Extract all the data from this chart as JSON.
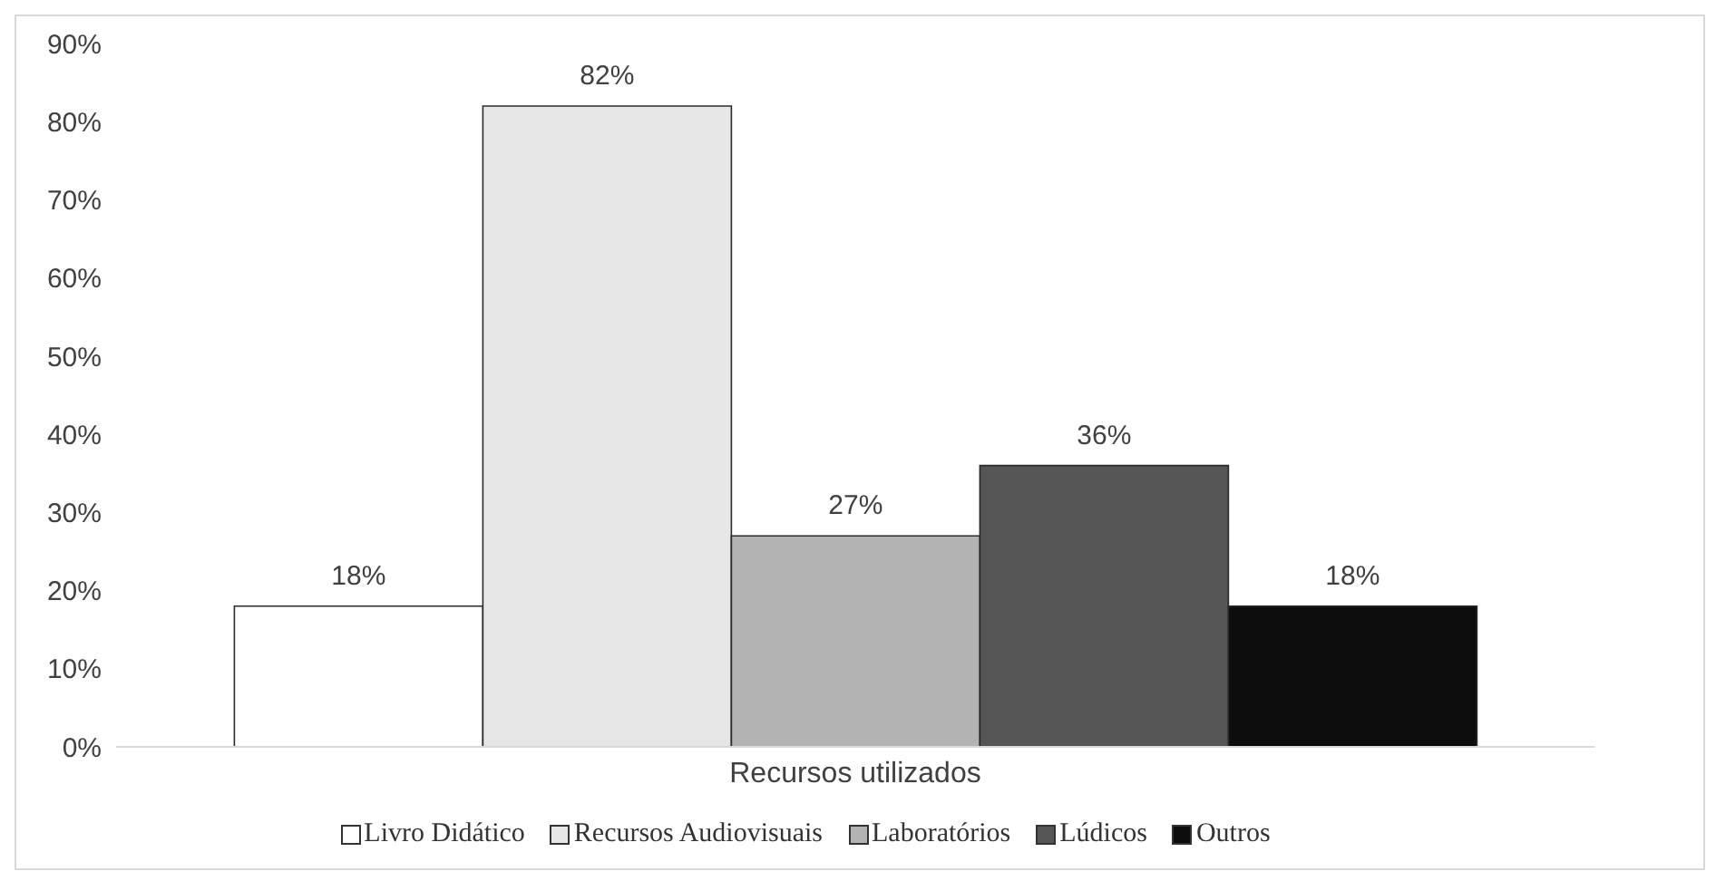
{
  "chart_data": {
    "type": "bar",
    "categories": [
      "Recursos utilizados"
    ],
    "series": [
      {
        "name": "Livro Didático",
        "color": "#ffffff",
        "values": [
          18
        ],
        "value_labels": [
          "18%"
        ]
      },
      {
        "name": "Recursos Audiovisuais",
        "color": "#e6e6e6",
        "values": [
          82
        ],
        "value_labels": [
          "82%"
        ]
      },
      {
        "name": "Laboratórios",
        "color": "#b3b3b3",
        "values": [
          27
        ],
        "value_labels": [
          "27%"
        ]
      },
      {
        "name": "Lúdicos",
        "color": "#555555",
        "values": [
          36
        ],
        "value_labels": [
          "36%"
        ]
      },
      {
        "name": "Outros",
        "color": "#0d0d0d",
        "values": [
          18
        ],
        "value_labels": [
          "18%"
        ]
      }
    ],
    "ylim": [
      0,
      90
    ],
    "yticks": [
      {
        "value": 0,
        "label": "0%"
      },
      {
        "value": 10,
        "label": "10%"
      },
      {
        "value": 20,
        "label": "20%"
      },
      {
        "value": 30,
        "label": "30%"
      },
      {
        "value": 40,
        "label": "40%"
      },
      {
        "value": 50,
        "label": "50%"
      },
      {
        "value": 60,
        "label": "60%"
      },
      {
        "value": 70,
        "label": "70%"
      },
      {
        "value": 80,
        "label": "80%"
      },
      {
        "value": 90,
        "label": "90%"
      }
    ],
    "grid": false,
    "legend": "bottom"
  }
}
